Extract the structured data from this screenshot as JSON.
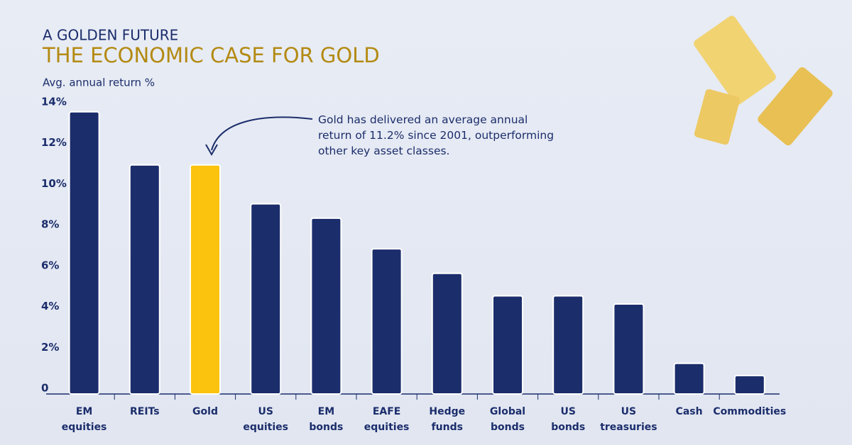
{
  "kicker": "A GOLDEN FUTURE",
  "chart_data": {
    "type": "bar",
    "title": "THE ECONOMIC CASE FOR GOLD",
    "y_label": "Avg. annual return %",
    "annotation": "Gold has delivered an average annual return of 11.2% since 2001, outperforming other key asset classes.",
    "categories": [
      "EM equities",
      "REITs",
      "Gold",
      "US equities",
      "EM bonds",
      "EAFE equities",
      "Hedge funds",
      "Global bonds",
      "US bonds",
      "US treasuries",
      "Cash",
      "Commodities"
    ],
    "values": [
      13.8,
      11.2,
      11.2,
      9.3,
      8.6,
      7.1,
      5.9,
      4.8,
      4.8,
      4.4,
      1.5,
      0.9
    ],
    "colors": [
      "#1b2d6b",
      "#1b2d6b",
      "#fbc20e",
      "#1b2d6b",
      "#1b2d6b",
      "#1b2d6b",
      "#1b2d6b",
      "#1b2d6b",
      "#1b2d6b",
      "#1b2d6b",
      "#1b2d6b",
      "#1b2d6b"
    ],
    "ylim": [
      0,
      14
    ],
    "yticks": [
      0,
      {
        "value": 2,
        "label": "2%"
      },
      {
        "value": 4,
        "label": "4%"
      },
      {
        "value": 6,
        "label": "6%"
      },
      {
        "value": 8,
        "label": "8%"
      },
      {
        "value": 10,
        "label": "10%"
      },
      {
        "value": 12,
        "label": "12%"
      },
      {
        "value": 14,
        "label": "14%"
      }
    ],
    "grid": false
  }
}
